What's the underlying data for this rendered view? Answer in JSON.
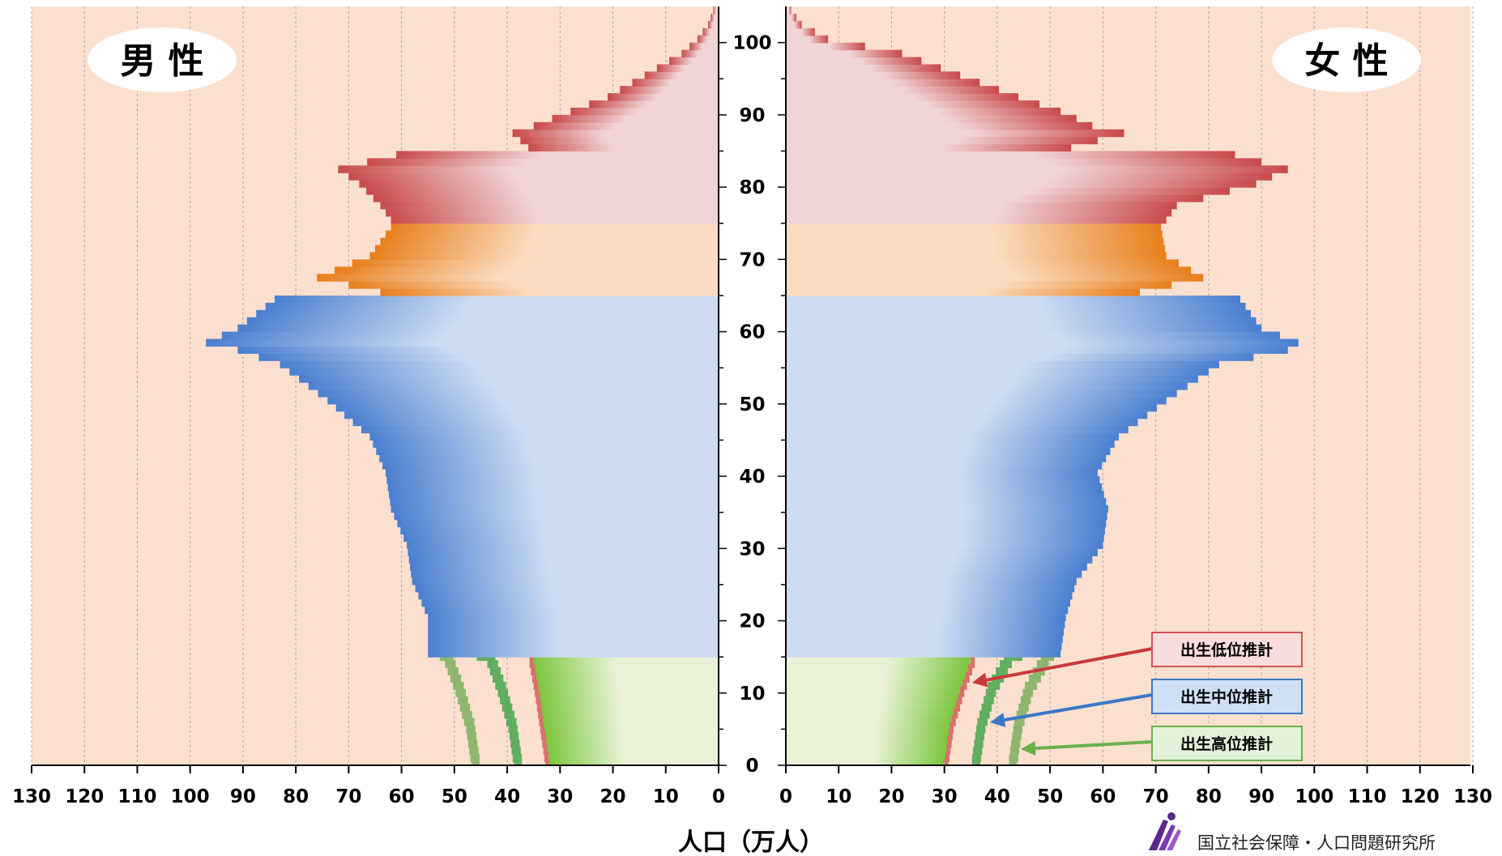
{
  "chart_data": {
    "type": "population-pyramid",
    "xlabel": "人口（万人）",
    "x_range": [
      0,
      130
    ],
    "x_ticks": [
      0,
      10,
      20,
      30,
      40,
      50,
      60,
      70,
      80,
      90,
      100,
      110,
      120,
      130
    ],
    "age_ticks": [
      0,
      10,
      20,
      30,
      40,
      50,
      60,
      70,
      80,
      90,
      100
    ],
    "age_range": [
      0,
      105
    ],
    "grid": true,
    "sides": {
      "male": {
        "label": "男 性"
      },
      "female": {
        "label": "女 性"
      }
    },
    "age_bands": [
      {
        "from": 0,
        "to": 15,
        "color": "#7cc63e",
        "light": "#eaf3d8"
      },
      {
        "from": 15,
        "to": 65,
        "color": "#4a7fd0",
        "light": "#cddcf2"
      },
      {
        "from": 65,
        "to": 75,
        "color": "#e87f1c",
        "light": "#fbdcc0"
      },
      {
        "from": 75,
        "to": 105,
        "color": "#c94a4a",
        "light": "#f1d4d6"
      }
    ],
    "colors": {
      "background": "#fbe0cf",
      "grid": "#a9a9a9"
    },
    "series": [
      {
        "name": "male",
        "ages": [
          0,
          5,
          10,
          14,
          15,
          20,
          25,
          30,
          35,
          40,
          45,
          50,
          55,
          57,
          58,
          60,
          64,
          65,
          67,
          70,
          74,
          75,
          77,
          80,
          82,
          84,
          85,
          87,
          88,
          90,
          92,
          95,
          98,
          100,
          102,
          104,
          105
        ],
        "values": [
          32,
          33,
          34,
          35,
          55,
          55,
          58,
          59,
          62,
          63,
          66,
          74,
          83,
          91,
          97,
          91,
          84,
          64,
          76,
          66,
          62,
          62,
          64,
          68,
          72,
          61,
          36,
          39,
          35,
          28,
          21,
          14,
          7,
          4,
          2,
          1,
          0
        ]
      },
      {
        "name": "female",
        "ages": [
          0,
          5,
          10,
          14,
          15,
          20,
          25,
          30,
          35,
          40,
          45,
          50,
          55,
          57,
          58,
          60,
          64,
          65,
          67,
          70,
          74,
          75,
          77,
          80,
          82,
          84,
          85,
          87,
          88,
          90,
          92,
          95,
          98,
          100,
          102,
          104,
          105
        ],
        "values": [
          30,
          31,
          33,
          35,
          52,
          53,
          55,
          60,
          61,
          59,
          63,
          72,
          82,
          95,
          97,
          90,
          86,
          67,
          79,
          72,
          71,
          72,
          74,
          89,
          95,
          85,
          54,
          64,
          58,
          52,
          44,
          33,
          22,
          8,
          3,
          1,
          0
        ]
      }
    ],
    "projections": {
      "ages": [
        0,
        5,
        10,
        14,
        15,
        18,
        20
      ],
      "series": [
        {
          "name": "出生低位推計",
          "color": "#d04a4a",
          "male": [
            32,
            33,
            34,
            35,
            35,
            38,
            0
          ],
          "female": [
            30,
            31,
            33,
            35,
            35,
            38,
            0
          ]
        },
        {
          "name": "出生中位推計",
          "color": "#2e9e3e",
          "male": [
            38,
            39,
            41,
            43,
            45,
            48,
            52
          ],
          "female": [
            36,
            37,
            39,
            42,
            44,
            47,
            50
          ]
        },
        {
          "name": "出生高位推計",
          "color": "#6aa84f",
          "male": [
            46,
            47,
            49,
            51,
            52,
            53,
            54
          ],
          "female": [
            43,
            44,
            46,
            49,
            50,
            51,
            52
          ]
        }
      ]
    }
  },
  "legend": [
    {
      "label": "出生低位推計",
      "bg": "#f9dcdc",
      "border": "#d35454",
      "arrow": "#c83a3a"
    },
    {
      "label": "出生中位推計",
      "bg": "#cfe0f6",
      "border": "#3a78c6",
      "arrow": "#3a78c6"
    },
    {
      "label": "出生高位推計",
      "bg": "#e2f2d8",
      "border": "#6ab04c",
      "arrow": "#6ab04c"
    }
  ],
  "credit": {
    "text": "国立社会保障・人口問題研究所",
    "logo": "ipss-logo"
  }
}
